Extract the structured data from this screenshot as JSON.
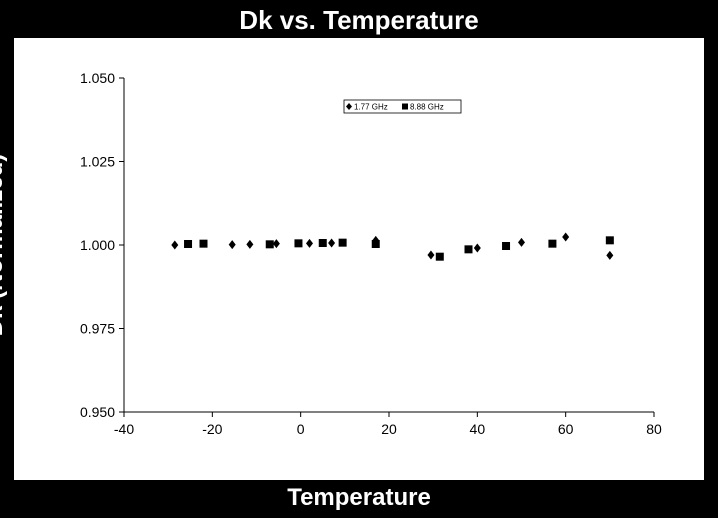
{
  "chart_data": {
    "type": "scatter",
    "title": "Dk vs. Temperature",
    "xlabel": "Temperature",
    "ylabel": "Dk (Normalized)",
    "xlim": [
      -40,
      80
    ],
    "ylim": [
      0.95,
      1.05
    ],
    "x_ticks": [
      "-40",
      "-20",
      "0",
      "20",
      "40",
      "60",
      "80"
    ],
    "y_ticks": [
      "0.950",
      "0.975",
      "1.000",
      "1.025",
      "1.050"
    ],
    "x_tick_values": [
      -40,
      -20,
      0,
      20,
      40,
      60,
      80
    ],
    "y_tick_values": [
      0.95,
      0.975,
      1.0,
      1.025,
      1.05
    ],
    "grid": false,
    "legend_position": "top-center",
    "series": [
      {
        "name": "1.77 GHz",
        "marker": "diamond",
        "color": "#000000",
        "points": [
          [
            -28.5,
            1.0
          ],
          [
            -15.5,
            1.0001
          ],
          [
            -11.5,
            1.0002
          ],
          [
            -5.5,
            1.0004
          ],
          [
            2,
            1.0005
          ],
          [
            7,
            1.0006
          ],
          [
            17,
            1.0014
          ],
          [
            29.5,
            0.997
          ],
          [
            40,
            0.9991
          ],
          [
            50,
            1.0008
          ],
          [
            60,
            1.0024
          ],
          [
            70,
            0.9969
          ]
        ]
      },
      {
        "name": "8.88 GHz",
        "marker": "square",
        "color": "#000000",
        "points": [
          [
            -25.5,
            1.0003
          ],
          [
            -22,
            1.0004
          ],
          [
            -7,
            1.0002
          ],
          [
            -0.5,
            1.0005
          ],
          [
            5,
            1.0006
          ],
          [
            9.5,
            1.0007
          ],
          [
            17,
            1.0003
          ],
          [
            31.5,
            0.9965
          ],
          [
            38,
            0.9987
          ],
          [
            46.5,
            0.9997
          ],
          [
            57,
            1.0004
          ],
          [
            70,
            1.0014
          ]
        ]
      }
    ]
  }
}
